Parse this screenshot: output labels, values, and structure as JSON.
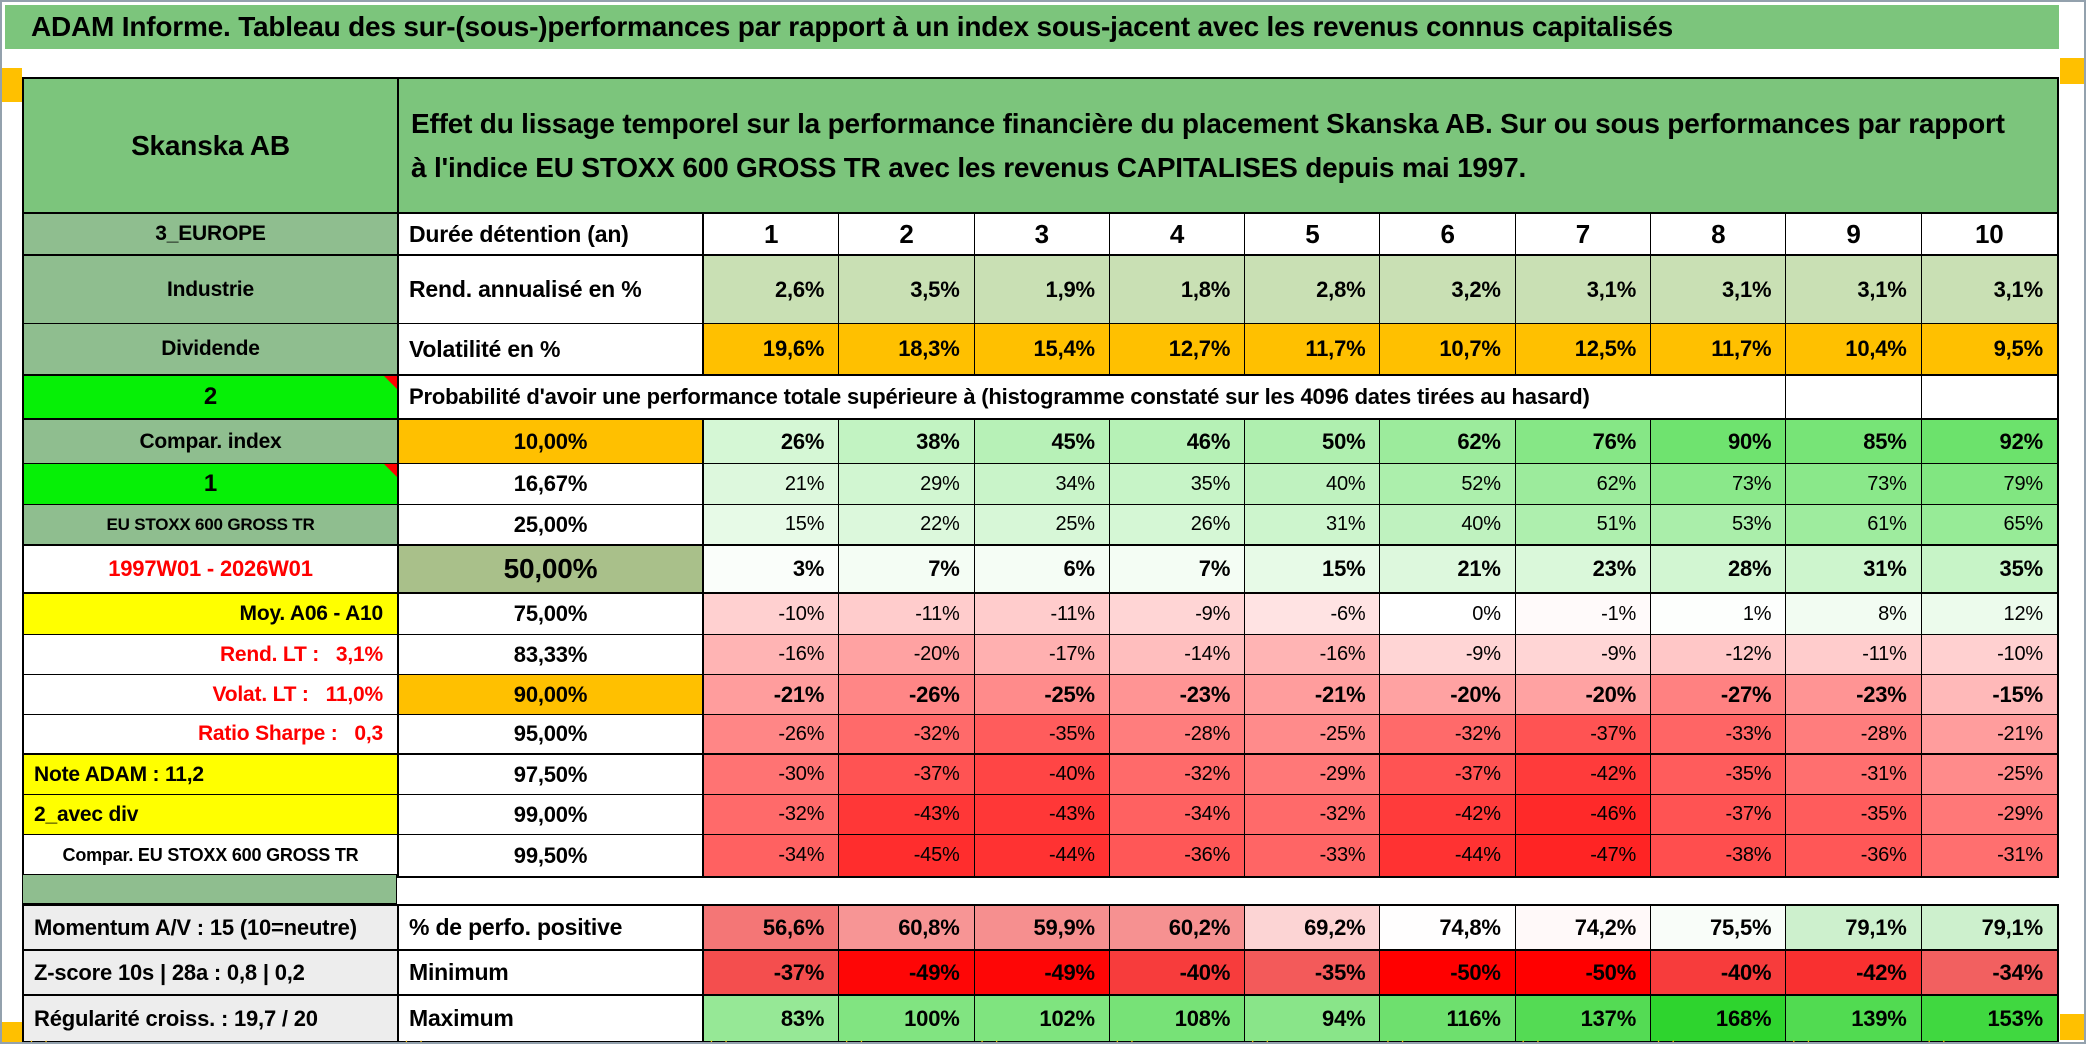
{
  "title": "ADAM Informe. Tableau des sur-(sous-)performances par rapport à un index sous-jacent avec les revenus connus capitalisés",
  "security": {
    "name": "Skanska AB",
    "description": "Effet du lissage temporel sur la performance financière du placement Skanska AB. Sur ou sous performances par rapport à l'indice EU STOXX 600 GROSS TR avec les revenus CAPITALISES depuis mai 1997.",
    "region": "3_EUROPE",
    "sector": "Industrie",
    "dividend_flag": "Dividende",
    "note_cell_2": "2",
    "note_cell_1": "1"
  },
  "table": {
    "holding_label": "Durée détention (an)",
    "years": [
      "1",
      "2",
      "3",
      "4",
      "5",
      "6",
      "7",
      "8",
      "9",
      "10"
    ],
    "rend_label": "Rend. annualisé en %",
    "rend": [
      "2,6%",
      "3,5%",
      "1,9%",
      "1,8%",
      "2,8%",
      "3,2%",
      "3,1%",
      "3,1%",
      "3,1%",
      "3,1%"
    ],
    "volat_label": "Volatilité en %",
    "volat": [
      "19,6%",
      "18,3%",
      "15,4%",
      "12,7%",
      "11,7%",
      "10,7%",
      "12,5%",
      "11,7%",
      "10,4%",
      "9,5%"
    ],
    "prob_header": "Probabilité d'avoir une performance totale supérieure à (histogramme constaté sur les 4096 dates tirées au hasard)",
    "prob_rows": [
      {
        "label": "Compar. index",
        "label_style": "green",
        "threshold": "10,00%",
        "threshold_style": "orange",
        "bold": true,
        "values": [
          "26%",
          "38%",
          "45%",
          "46%",
          "50%",
          "62%",
          "76%",
          "90%",
          "85%",
          "92%"
        ]
      },
      {
        "label": "1",
        "label_style": "bright",
        "threshold": "16,67%",
        "threshold_style": "white",
        "bold": false,
        "values": [
          "21%",
          "29%",
          "34%",
          "35%",
          "40%",
          "52%",
          "62%",
          "73%",
          "73%",
          "79%"
        ]
      },
      {
        "label": "EU STOXX 600 GROSS TR",
        "label_style": "green-sm",
        "threshold": "25,00%",
        "threshold_style": "white",
        "bold": false,
        "values": [
          "15%",
          "22%",
          "25%",
          "26%",
          "31%",
          "40%",
          "51%",
          "53%",
          "61%",
          "65%"
        ]
      },
      {
        "label": "1997W01 - 2026W01",
        "label_style": "date-red",
        "threshold": "50,00%",
        "threshold_style": "sage",
        "bold": true,
        "values": [
          "3%",
          "7%",
          "6%",
          "7%",
          "15%",
          "21%",
          "23%",
          "28%",
          "31%",
          "35%"
        ]
      },
      {
        "label": "Moy. A06 - A10",
        "label_style": "yellow-right",
        "threshold": "75,00%",
        "threshold_style": "white",
        "bold": false,
        "values": [
          "-10%",
          "-11%",
          "-11%",
          "-9%",
          "-6%",
          "0%",
          "-1%",
          "1%",
          "8%",
          "12%"
        ]
      },
      {
        "label": "Rend. LT :   3,1%",
        "label_style": "red-right",
        "threshold": "83,33%",
        "threshold_style": "white",
        "bold": false,
        "values": [
          "-16%",
          "-20%",
          "-17%",
          "-14%",
          "-16%",
          "-9%",
          "-9%",
          "-12%",
          "-11%",
          "-10%"
        ]
      },
      {
        "label": "Volat. LT :   11,0%",
        "label_style": "red-right",
        "threshold": "90,00%",
        "threshold_style": "orange",
        "bold": true,
        "values": [
          "-21%",
          "-26%",
          "-25%",
          "-23%",
          "-21%",
          "-20%",
          "-20%",
          "-27%",
          "-23%",
          "-15%"
        ]
      },
      {
        "label": "Ratio Sharpe :   0,3",
        "label_style": "red-right",
        "threshold": "95,00%",
        "threshold_style": "white",
        "bold": false,
        "values": [
          "-26%",
          "-32%",
          "-35%",
          "-28%",
          "-25%",
          "-32%",
          "-37%",
          "-33%",
          "-28%",
          "-21%"
        ]
      },
      {
        "label": "Note ADAM : 11,2",
        "label_style": "yellow-left",
        "threshold": "97,50%",
        "threshold_style": "white",
        "bold": false,
        "values": [
          "-30%",
          "-37%",
          "-40%",
          "-32%",
          "-29%",
          "-37%",
          "-42%",
          "-35%",
          "-31%",
          "-25%"
        ]
      },
      {
        "label": "2_avec div",
        "label_style": "yellow-left",
        "threshold": "99,00%",
        "threshold_style": "white",
        "bold": false,
        "values": [
          "-32%",
          "-43%",
          "-43%",
          "-34%",
          "-32%",
          "-42%",
          "-46%",
          "-37%",
          "-35%",
          "-29%"
        ]
      },
      {
        "label": "Compar. EU STOXX 600 GROSS TR",
        "label_style": "white-center",
        "threshold": "99,50%",
        "threshold_style": "white",
        "bold": false,
        "values": [
          "-34%",
          "-45%",
          "-44%",
          "-36%",
          "-33%",
          "-44%",
          "-47%",
          "-38%",
          "-36%",
          "-31%"
        ]
      }
    ]
  },
  "footer": {
    "rows": [
      {
        "label": "Momentum A/V : 15 (10=neutre)",
        "metric": "% de perfo. positive",
        "scale": "perfo",
        "values": [
          "56,6%",
          "60,8%",
          "59,9%",
          "60,2%",
          "69,2%",
          "74,8%",
          "74,2%",
          "75,5%",
          "79,1%",
          "79,1%"
        ]
      },
      {
        "label": "Z-score 10s | 28a : 0,8 | 0,2",
        "metric": "Minimum",
        "scale": "min",
        "values": [
          "-37%",
          "-49%",
          "-49%",
          "-40%",
          "-35%",
          "-50%",
          "-50%",
          "-40%",
          "-42%",
          "-34%"
        ]
      },
      {
        "label": "Régularité croiss. : 19,7 / 20",
        "metric": "Maximum",
        "scale": "max",
        "values": [
          "83%",
          "100%",
          "102%",
          "108%",
          "94%",
          "116%",
          "137%",
          "168%",
          "139%",
          "153%"
        ]
      }
    ]
  },
  "colors": {
    "header_green": "#7cc57c",
    "label_green": "#8fbe8f",
    "bright_green": "#06f006",
    "orange": "#ffc000",
    "yellow": "#ffff00",
    "sage": "#a9c08a",
    "red_text": "#ff0000",
    "footer_gray": "#ededed",
    "positive_green_max": "#6ce26c",
    "negative_red_max": "#ff2424"
  }
}
